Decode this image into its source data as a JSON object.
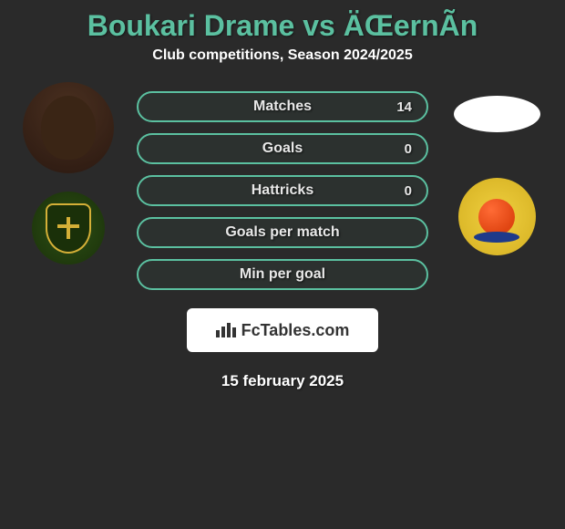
{
  "header": {
    "title": "Boukari Drame vs ÄŒernÃ­n",
    "subtitle": "Club competitions, Season 2024/2025"
  },
  "stats": [
    {
      "label": "Matches",
      "value": "14"
    },
    {
      "label": "Goals",
      "value": "0"
    },
    {
      "label": "Hattricks",
      "value": "0"
    },
    {
      "label": "Goals per match",
      "value": ""
    },
    {
      "label": "Min per goal",
      "value": ""
    }
  ],
  "footer": {
    "brand": "FcTables.com",
    "date": "15 february 2025"
  },
  "colors": {
    "accent": "#5bc0a0",
    "background": "#2a2a2a"
  }
}
